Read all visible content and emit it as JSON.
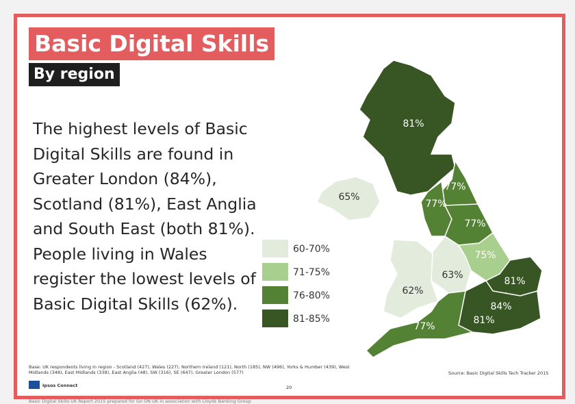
{
  "header": {
    "title": "Basic Digital Skills",
    "subtitle": "By region"
  },
  "body": "The highest levels of Basic Digital Skills are found in Greater London (84%), Scotland (81%), East Anglia and South East (both 81%). People living in Wales register the lowest levels of Basic Digital Skills (62%).",
  "legend": [
    "60-70%",
    "71-75%",
    "76-80%",
    "81-85%"
  ],
  "regions": [
    {
      "name": "Scotland",
      "label": "81%"
    },
    {
      "name": "Northern Ireland",
      "label": "65%"
    },
    {
      "name": "North",
      "label": "77%"
    },
    {
      "name": "NW",
      "label": "77%"
    },
    {
      "name": "Yorks & Humber",
      "label": "77%"
    },
    {
      "name": "East Midlands",
      "label": "75%"
    },
    {
      "name": "West Midlands",
      "label": "63%"
    },
    {
      "name": "Wales",
      "label": "62%"
    },
    {
      "name": "East Anglia",
      "label": "81%"
    },
    {
      "name": "Greater London",
      "label": "84%"
    },
    {
      "name": "SE",
      "label": "81%"
    },
    {
      "name": "SW",
      "label": "77%"
    }
  ],
  "footer": {
    "base": "Base:  UK respondents living in region -  Scotland (427), Wales (227), Northern Ireland (121), North (185), NW (496), Yorks & Humber (439), West Midlands (348), East Midlands (338), East Anglia (48), SW (316), SE (647), Greater London (577)",
    "source": "Source: Basic Digital Skills Tech Tracker 2015",
    "logo": "Ipsos Connect",
    "page": "20",
    "caption": "Basic Digital Skills UK Report 2015 prepared for Go ON UK in association with Lloyds Banking Group"
  }
}
